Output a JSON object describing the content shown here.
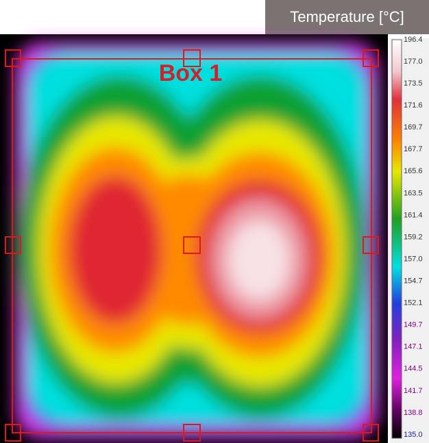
{
  "header": {
    "title": "Temperature [°C]"
  },
  "image": {
    "box_label": "Box 1"
  },
  "colorbar": {
    "labels": [
      "196.4",
      "177.0",
      "173.5",
      "171.6",
      "169.7",
      "167.7",
      "165.6",
      "163.5",
      "161.4",
      "159.2",
      "157.0",
      "154.7",
      "152.1",
      "149.7",
      "147.1",
      "144.5",
      "141.7",
      "138.8",
      "135.0"
    ]
  }
}
